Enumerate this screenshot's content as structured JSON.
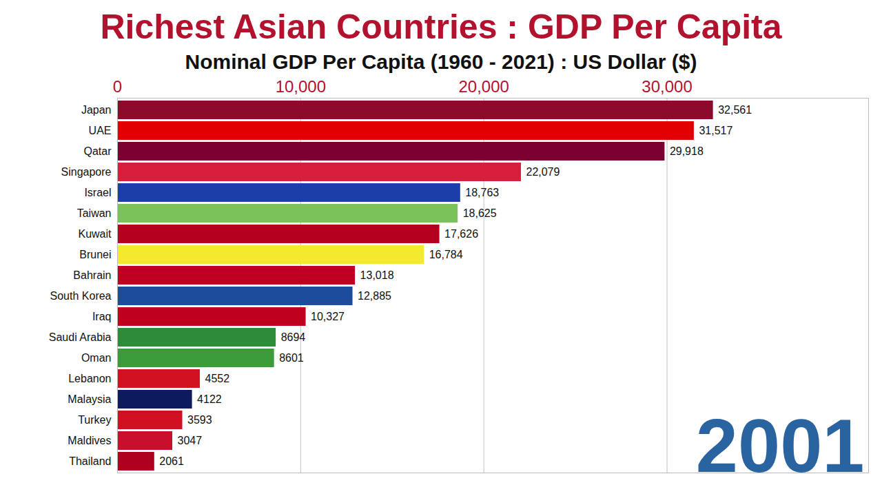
{
  "chart_data": {
    "type": "bar",
    "title": "Richest Asian Countries : GDP Per Capita",
    "subtitle": "Nominal GDP Per Capita (1960 - 2021) : US Dollar ($)",
    "annotation": "2001",
    "orientation": "horizontal",
    "categories": [
      "Japan",
      "UAE",
      "Qatar",
      "Singapore",
      "Israel",
      "Taiwan",
      "Kuwait",
      "Brunei",
      "Bahrain",
      "South Korea",
      "Iraq",
      "Saudi Arabia",
      "Oman",
      "Lebanon",
      "Malaysia",
      "Turkey",
      "Maldives",
      "Thailand"
    ],
    "values": [
      32561,
      31517,
      29918,
      22079,
      18763,
      18625,
      17626,
      16784,
      13018,
      12885,
      10327,
      8694,
      8601,
      4552,
      4122,
      3593,
      3047,
      2061
    ],
    "value_labels": [
      "32,561",
      "31,517",
      "29,918",
      "22,079",
      "18,763",
      "18,625",
      "17,626",
      "16,784",
      "13,018",
      "12,885",
      "10,327",
      "8694",
      "8601",
      "4552",
      "4122",
      "3593",
      "3047",
      "2061"
    ],
    "colors": [
      "#8c0a2c",
      "#e30000",
      "#7a0032",
      "#d81e3c",
      "#1b3ea8",
      "#7cc25a",
      "#b5001f",
      "#f3ea2c",
      "#bd0022",
      "#1e4c9c",
      "#c0001f",
      "#2e8b3a",
      "#3c9c3a",
      "#d21222",
      "#0d1b5e",
      "#d30f22",
      "#c8102e",
      "#b0001f"
    ],
    "xlim": [
      0,
      41000
    ],
    "xticks": [
      0,
      {
        "value": 10000,
        "label": "10,000"
      },
      {
        "value": 20000,
        "label": "20,000"
      },
      {
        "value": 30000,
        "label": "30,000"
      }
    ],
    "grid": true,
    "data_labels": true
  }
}
